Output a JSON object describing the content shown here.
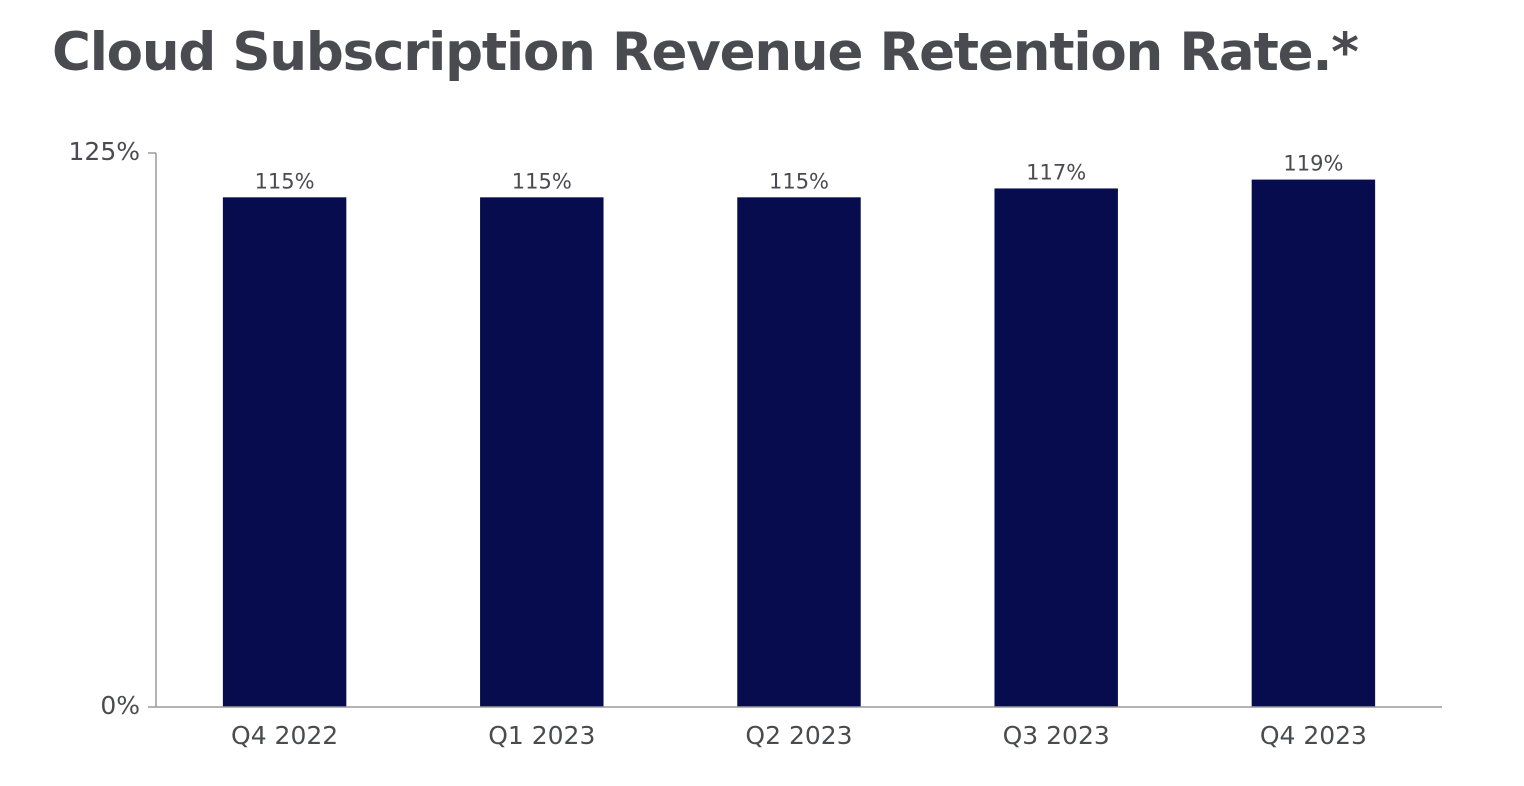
{
  "chart_data": {
    "type": "bar",
    "title": "Cloud Subscription Revenue Retention Rate.*",
    "categories": [
      "Q4 2022",
      "Q1 2023",
      "Q2 2023",
      "Q3 2023",
      "Q4 2023"
    ],
    "values": [
      115,
      115,
      115,
      117,
      119
    ],
    "data_labels": [
      "115%",
      "115%",
      "115%",
      "117%",
      "119%"
    ],
    "ylim": [
      0,
      125
    ],
    "yticks": [
      0,
      125
    ],
    "ytick_labels": [
      "0%",
      "125%"
    ],
    "xlabel": "",
    "ylabel": "",
    "grid": false,
    "bar_color": "#060c4d",
    "axis_color": "#9a9a9a",
    "text_color": "#4a4b50"
  }
}
